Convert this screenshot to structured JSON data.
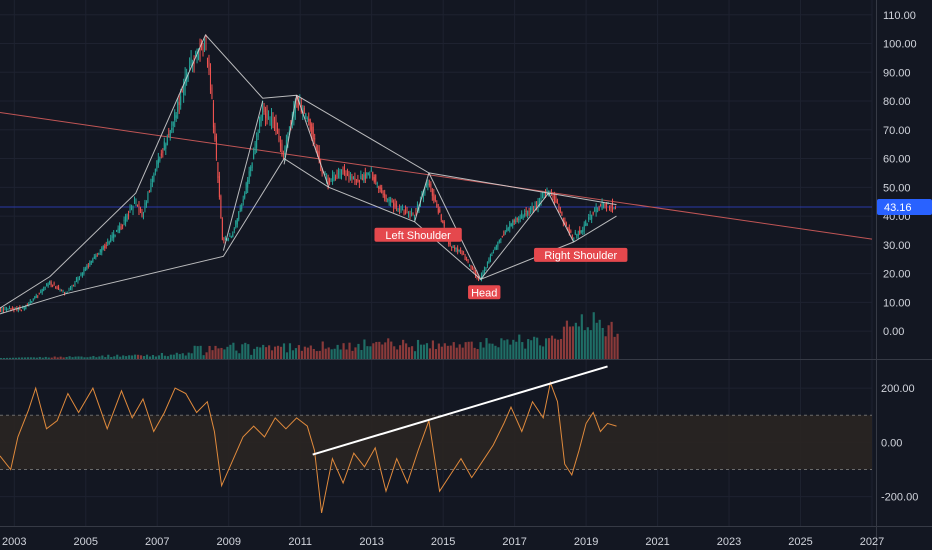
{
  "colors": {
    "background": "#131722",
    "grid": "#1e2230",
    "axis_text": "#d1d4dc",
    "bull": "#26a69a",
    "bear": "#ef5350",
    "bull_volume": "#1f6e66",
    "bear_volume": "#8a3a3a",
    "pattern_lines": "#d8d8d8",
    "trendline": "#c05555",
    "indicator": "#e08a3c",
    "indicator_band": "#2a2522",
    "current_price_line": "#2a3aa8",
    "current_price_tag": "#2962ff",
    "label_tag": "#e5484d"
  },
  "current_price": {
    "value": 43.16,
    "label": "43.16"
  },
  "annotations": [
    {
      "id": "left-shoulder",
      "text": "Left Shoulder",
      "date": 2014.3,
      "price": 33.5
    },
    {
      "id": "head",
      "text": "Head",
      "date": 2016.15,
      "price": 13.5
    },
    {
      "id": "right-shoulder",
      "text": "Right Shoulder",
      "date": 2018.85,
      "price": 26.5
    }
  ],
  "chart_data": [
    {
      "type": "candlestick",
      "title": "",
      "xlabel": "",
      "ylabel": "",
      "x_ticks": [
        "2003",
        "2005",
        "2007",
        "2009",
        "2011",
        "2013",
        "2015",
        "2017",
        "2019",
        "2021",
        "2023",
        "2025",
        "2027"
      ],
      "y_ticks": [
        "110.00",
        "100.00",
        "90.00",
        "80.00",
        "70.00",
        "60.00",
        "50.00",
        "40.00",
        "30.00",
        "20.00",
        "10.00",
        "0.00"
      ],
      "ylim": [
        -9,
        112
      ],
      "xlim": [
        2002.6,
        2027.0
      ],
      "grid": true,
      "price_path": [
        [
          2002.6,
          7
        ],
        [
          2003.3,
          8
        ],
        [
          2004.0,
          17
        ],
        [
          2004.45,
          13
        ],
        [
          2005.1,
          23
        ],
        [
          2006.0,
          36
        ],
        [
          2006.4,
          45
        ],
        [
          2006.6,
          40
        ],
        [
          2007.0,
          58
        ],
        [
          2007.4,
          70
        ],
        [
          2007.75,
          85
        ],
        [
          2008.0,
          93
        ],
        [
          2008.35,
          101
        ],
        [
          2008.5,
          88
        ],
        [
          2008.75,
          50
        ],
        [
          2008.85,
          32
        ],
        [
          2009.1,
          33
        ],
        [
          2009.4,
          45
        ],
        [
          2009.7,
          60
        ],
        [
          2009.95,
          77
        ],
        [
          2010.3,
          73
        ],
        [
          2010.55,
          60
        ],
        [
          2010.9,
          80
        ],
        [
          2011.1,
          76
        ],
        [
          2011.35,
          70
        ],
        [
          2011.65,
          55
        ],
        [
          2011.8,
          52
        ],
        [
          2012.2,
          56
        ],
        [
          2012.6,
          52
        ],
        [
          2013.0,
          55
        ],
        [
          2013.4,
          47
        ],
        [
          2013.8,
          42
        ],
        [
          2014.2,
          40
        ],
        [
          2014.6,
          52
        ],
        [
          2014.95,
          40
        ],
        [
          2015.2,
          30
        ],
        [
          2015.5,
          28
        ],
        [
          2015.8,
          22
        ],
        [
          2016.05,
          18
        ],
        [
          2016.4,
          27
        ],
        [
          2016.8,
          36
        ],
        [
          2017.2,
          40
        ],
        [
          2017.6,
          43
        ],
        [
          2017.95,
          48
        ],
        [
          2018.2,
          45
        ],
        [
          2018.4,
          38
        ],
        [
          2018.65,
          33
        ],
        [
          2018.9,
          35
        ],
        [
          2019.2,
          41
        ],
        [
          2019.5,
          44
        ],
        [
          2019.85,
          43.16
        ]
      ],
      "volume_range": [
        2002.6,
        2019.9
      ],
      "pattern_lines": [
        [
          [
            2002.6,
            6
          ],
          [
            2004.45,
            13
          ],
          [
            2008.85,
            26
          ],
          [
            2010.55,
            60
          ],
          [
            2011.8,
            50
          ],
          [
            2014.2,
            38
          ],
          [
            2016.05,
            18
          ],
          [
            2018.65,
            31
          ],
          [
            2019.85,
            40
          ]
        ],
        [
          [
            2002.6,
            8
          ],
          [
            2004.0,
            19
          ],
          [
            2006.4,
            48
          ],
          [
            2008.35,
            103
          ],
          [
            2009.95,
            81
          ],
          [
            2010.9,
            82
          ],
          [
            2014.6,
            55
          ],
          [
            2017.95,
            48
          ],
          [
            2019.85,
            44
          ]
        ],
        [
          [
            2008.85,
            28
          ],
          [
            2009.95,
            80
          ]
        ],
        [
          [
            2010.55,
            58
          ],
          [
            2010.9,
            82
          ]
        ],
        [
          [
            2011.8,
            50
          ],
          [
            2010.9,
            82
          ]
        ],
        [
          [
            2014.2,
            38
          ],
          [
            2014.6,
            55
          ]
        ],
        [
          [
            2014.6,
            55
          ],
          [
            2016.05,
            18
          ]
        ],
        [
          [
            2016.05,
            18
          ],
          [
            2017.95,
            48
          ]
        ],
        [
          [
            2017.95,
            48
          ],
          [
            2018.65,
            31
          ]
        ]
      ],
      "trendline": [
        [
          2002.6,
          76
        ],
        [
          2027.0,
          32
        ]
      ]
    },
    {
      "type": "line",
      "title": "",
      "y_ticks": [
        "200.00",
        "0.00",
        "-200.00"
      ],
      "ylim": [
        -290,
        300
      ],
      "band": [
        -100,
        100
      ],
      "series": [
        {
          "values": [
            [
              2002.6,
              -50
            ],
            [
              2002.9,
              -100
            ],
            [
              2003.1,
              20
            ],
            [
              2003.4,
              120
            ],
            [
              2003.6,
              200
            ],
            [
              2003.9,
              50
            ],
            [
              2004.2,
              80
            ],
            [
              2004.5,
              180
            ],
            [
              2004.8,
              110
            ],
            [
              2005.2,
              200
            ],
            [
              2005.6,
              50
            ],
            [
              2006.0,
              190
            ],
            [
              2006.3,
              90
            ],
            [
              2006.6,
              160
            ],
            [
              2006.9,
              40
            ],
            [
              2007.2,
              110
            ],
            [
              2007.5,
              200
            ],
            [
              2007.8,
              180
            ],
            [
              2008.1,
              110
            ],
            [
              2008.4,
              150
            ],
            [
              2008.6,
              40
            ],
            [
              2008.8,
              -160
            ],
            [
              2009.1,
              -70
            ],
            [
              2009.4,
              20
            ],
            [
              2009.7,
              60
            ],
            [
              2010.0,
              20
            ],
            [
              2010.3,
              90
            ],
            [
              2010.6,
              50
            ],
            [
              2010.9,
              90
            ],
            [
              2011.2,
              60
            ],
            [
              2011.4,
              -30
            ],
            [
              2011.6,
              -260
            ],
            [
              2011.9,
              -60
            ],
            [
              2012.2,
              -150
            ],
            [
              2012.5,
              -40
            ],
            [
              2012.8,
              -90
            ],
            [
              2013.1,
              -20
            ],
            [
              2013.4,
              -180
            ],
            [
              2013.7,
              -60
            ],
            [
              2014.0,
              -150
            ],
            [
              2014.3,
              -30
            ],
            [
              2014.6,
              80
            ],
            [
              2014.9,
              -180
            ],
            [
              2015.2,
              -120
            ],
            [
              2015.5,
              -60
            ],
            [
              2015.8,
              -130
            ],
            [
              2016.1,
              -70
            ],
            [
              2016.4,
              -10
            ],
            [
              2016.7,
              70
            ],
            [
              2016.9,
              130
            ],
            [
              2017.2,
              40
            ],
            [
              2017.5,
              150
            ],
            [
              2017.8,
              90
            ],
            [
              2018.0,
              220
            ],
            [
              2018.2,
              150
            ],
            [
              2018.4,
              -80
            ],
            [
              2018.6,
              -120
            ],
            [
              2018.8,
              -30
            ],
            [
              2019.0,
              70
            ],
            [
              2019.2,
              110
            ],
            [
              2019.4,
              40
            ],
            [
              2019.6,
              70
            ],
            [
              2019.85,
              60
            ]
          ]
        }
      ],
      "trendline": [
        [
          2011.35,
          -45
        ],
        [
          2019.6,
          280
        ]
      ]
    }
  ]
}
